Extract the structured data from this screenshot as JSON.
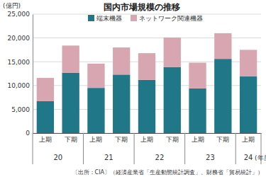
{
  "chart_data": {
    "type": "bar",
    "title": "国内市場規模の推移",
    "y_label": "(億円)",
    "x_label": "(年度)",
    "source": "〔出所：CIA〕（経済産業省「生産動態統計調査」、財務省「貿易統計」）",
    "categories": [
      "上期",
      "下期",
      "上期",
      "下期",
      "上期",
      "下期",
      "上期",
      "下期",
      "上期"
    ],
    "category_groups": [
      "20",
      "21",
      "22",
      "23",
      "24"
    ],
    "series": [
      {
        "name": "端末機器",
        "color": "#1f7787",
        "values": [
          6700,
          12700,
          9500,
          12300,
          11200,
          13900,
          9400,
          15600,
          11900
        ]
      },
      {
        "name": "ネットワーク関連機器",
        "color": "#d8a6b1",
        "values": [
          4900,
          5700,
          5100,
          5700,
          5600,
          6200,
          5400,
          5400,
          5600
        ]
      }
    ],
    "stacked": true,
    "ylim": [
      0,
      25000
    ],
    "yticks": [
      0,
      {
        "value": 5000,
        "label": "5,000"
      },
      {
        "value": 10000,
        "label": "10,000"
      },
      {
        "value": 15000,
        "label": "15,000"
      },
      {
        "value": 20000,
        "label": "20,000"
      },
      {
        "value": 25000,
        "label": "25,000"
      }
    ],
    "grid": true,
    "legend": "top"
  }
}
